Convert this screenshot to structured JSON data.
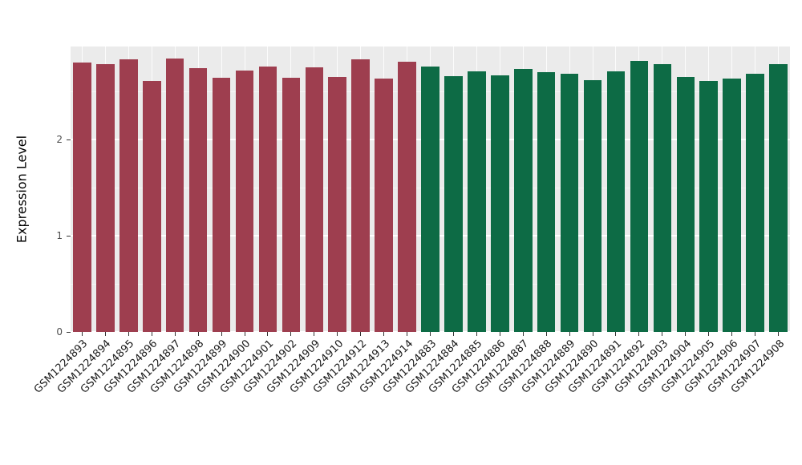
{
  "chart_data": {
    "type": "bar",
    "title": "",
    "ylabel": "Expression Level",
    "xlabel": "",
    "ylim": [
      0,
      2.97
    ],
    "yticks": [
      0,
      1,
      2
    ],
    "grid": "major-and-minor",
    "legend": "none",
    "panel_bg": "#EBEBEB",
    "gridline_color": "#FFFFFF",
    "group_colors": {
      "group1": "#9E3E4F",
      "group2": "#0D6B45"
    },
    "bars": [
      {
        "label": "GSM1224893",
        "value": 2.8,
        "group": "group1"
      },
      {
        "label": "GSM1224894",
        "value": 2.78,
        "group": "group1"
      },
      {
        "label": "GSM1224895",
        "value": 2.83,
        "group": "group1"
      },
      {
        "label": "GSM1224896",
        "value": 2.61,
        "group": "group1"
      },
      {
        "label": "GSM1224897",
        "value": 2.84,
        "group": "group1"
      },
      {
        "label": "GSM1224898",
        "value": 2.74,
        "group": "group1"
      },
      {
        "label": "GSM1224899",
        "value": 2.64,
        "group": "group1"
      },
      {
        "label": "GSM1224900",
        "value": 2.72,
        "group": "group1"
      },
      {
        "label": "GSM1224901",
        "value": 2.76,
        "group": "group1"
      },
      {
        "label": "GSM1224902",
        "value": 2.64,
        "group": "group1"
      },
      {
        "label": "GSM1224909",
        "value": 2.75,
        "group": "group1"
      },
      {
        "label": "GSM1224910",
        "value": 2.65,
        "group": "group1"
      },
      {
        "label": "GSM1224912",
        "value": 2.83,
        "group": "group1"
      },
      {
        "label": "GSM1224913",
        "value": 2.63,
        "group": "group1"
      },
      {
        "label": "GSM1224914",
        "value": 2.81,
        "group": "group1"
      },
      {
        "label": "GSM1224883",
        "value": 2.76,
        "group": "group2"
      },
      {
        "label": "GSM1224884",
        "value": 2.66,
        "group": "group2"
      },
      {
        "label": "GSM1224885",
        "value": 2.71,
        "group": "group2"
      },
      {
        "label": "GSM1224886",
        "value": 2.67,
        "group": "group2"
      },
      {
        "label": "GSM1224887",
        "value": 2.73,
        "group": "group2"
      },
      {
        "label": "GSM1224888",
        "value": 2.7,
        "group": "group2"
      },
      {
        "label": "GSM1224889",
        "value": 2.68,
        "group": "group2"
      },
      {
        "label": "GSM1224890",
        "value": 2.62,
        "group": "group2"
      },
      {
        "label": "GSM1224891",
        "value": 2.71,
        "group": "group2"
      },
      {
        "label": "GSM1224892",
        "value": 2.82,
        "group": "group2"
      },
      {
        "label": "GSM1224903",
        "value": 2.78,
        "group": "group2"
      },
      {
        "label": "GSM1224904",
        "value": 2.65,
        "group": "group2"
      },
      {
        "label": "GSM1224905",
        "value": 2.61,
        "group": "group2"
      },
      {
        "label": "GSM1224906",
        "value": 2.63,
        "group": "group2"
      },
      {
        "label": "GSM1224907",
        "value": 2.68,
        "group": "group2"
      },
      {
        "label": "GSM1224908",
        "value": 2.78,
        "group": "group2"
      }
    ]
  }
}
